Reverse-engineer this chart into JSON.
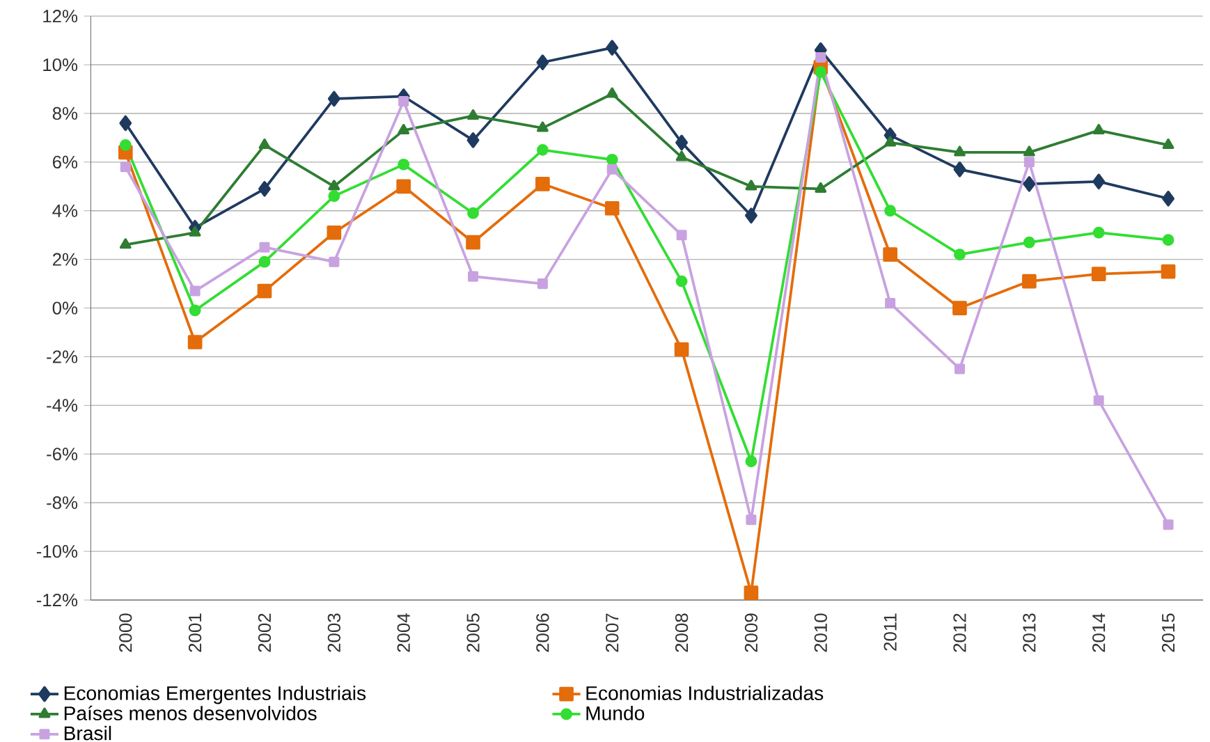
{
  "chart_data": {
    "type": "line",
    "categories": [
      "2000",
      "2001",
      "2002",
      "2003",
      "2004",
      "2005",
      "2006",
      "2007",
      "2008",
      "2009",
      "2010",
      "2011",
      "2012",
      "2013",
      "2014",
      "2015"
    ],
    "series": [
      {
        "name": "Economias Emergentes Industriais",
        "color": "#1f3a5f",
        "marker": "diamond",
        "values": [
          7.6,
          3.3,
          4.9,
          8.6,
          8.7,
          6.9,
          10.1,
          10.7,
          6.8,
          3.8,
          10.6,
          7.1,
          5.7,
          5.1,
          5.2,
          4.5
        ]
      },
      {
        "name": "Economias Industrializadas",
        "color": "#e46c0a",
        "marker": "square",
        "values": [
          6.4,
          -1.4,
          0.7,
          3.1,
          5.0,
          2.7,
          5.1,
          4.1,
          -1.7,
          -11.7,
          9.9,
          2.2,
          0.0,
          1.1,
          1.4,
          1.5
        ]
      },
      {
        "name": "Países menos desenvolvidos",
        "color": "#2e7d32",
        "marker": "triangle",
        "values": [
          2.6,
          3.1,
          6.7,
          5.0,
          7.3,
          7.9,
          7.4,
          8.8,
          6.2,
          5.0,
          4.9,
          6.8,
          6.4,
          6.4,
          7.3,
          6.7
        ]
      },
      {
        "name": "Mundo",
        "color": "#33dd33",
        "marker": "circle",
        "values": [
          6.7,
          -0.1,
          1.9,
          4.6,
          5.9,
          3.9,
          6.5,
          6.1,
          1.1,
          -6.3,
          9.7,
          4.0,
          2.2,
          2.7,
          3.1,
          2.8
        ]
      },
      {
        "name": "Brasil",
        "color": "#c8a2e0",
        "marker": "square",
        "values": [
          5.8,
          0.7,
          2.5,
          1.9,
          8.5,
          1.3,
          1.0,
          5.7,
          3.0,
          -8.7,
          10.3,
          0.2,
          -2.5,
          6.0,
          -3.8,
          -8.9
        ]
      }
    ],
    "ylim": [
      -12,
      12
    ],
    "yticks": [
      {
        "value": -12,
        "label": "-12%"
      },
      {
        "value": -10,
        "label": "-10%"
      },
      {
        "value": -8,
        "label": "-8%"
      },
      {
        "value": -6,
        "label": "-6%"
      },
      {
        "value": -4,
        "label": "-4%"
      },
      {
        "value": -2,
        "label": "-2%"
      },
      {
        "value": 0,
        "label": "0%"
      },
      {
        "value": 2,
        "label": "2%"
      },
      {
        "value": 4,
        "label": "4%"
      },
      {
        "value": 6,
        "label": "6%"
      },
      {
        "value": 8,
        "label": "8%"
      },
      {
        "value": 10,
        "label": "10%"
      },
      {
        "value": 12,
        "label": "12%"
      }
    ],
    "grid": "y",
    "legend": "bottom"
  }
}
